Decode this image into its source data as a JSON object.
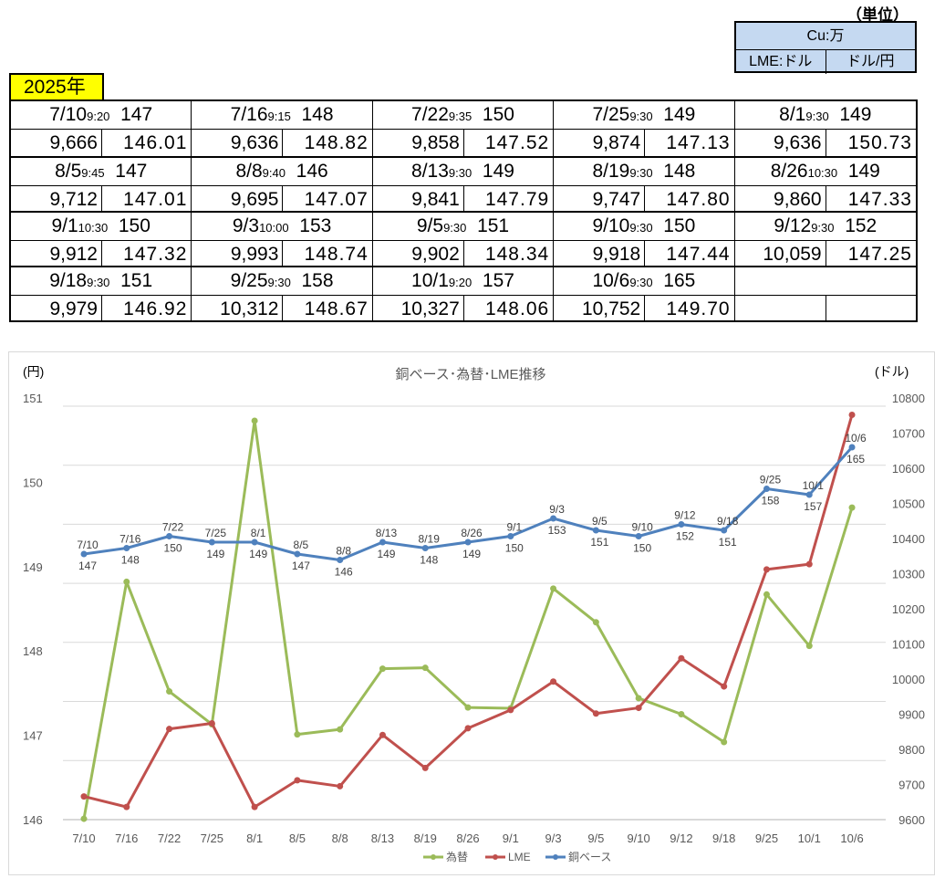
{
  "unit": {
    "label": "（単位）",
    "cu": "Cu:万",
    "lme": "LME:ドル",
    "fx": "ドル/円",
    "bg_color": "#c5d9f1"
  },
  "year": {
    "label": "2025年",
    "bg_color": "#ffff00"
  },
  "entries": [
    {
      "date": "7/10",
      "time": "9:20",
      "base": "147",
      "lme": "9,666",
      "fx": "146.01"
    },
    {
      "date": "7/16",
      "time": "9:15",
      "base": "148",
      "lme": "9,636",
      "fx": "148.82"
    },
    {
      "date": "7/22",
      "time": "9:35",
      "base": "150",
      "lme": "9,858",
      "fx": "147.52"
    },
    {
      "date": "7/25",
      "time": "9:30",
      "base": "149",
      "lme": "9,874",
      "fx": "147.13"
    },
    {
      "date": "8/1",
      "time": "9:30",
      "base": "149",
      "lme": "9,636",
      "fx": "150.73"
    },
    {
      "date": "8/5",
      "time": "9:45",
      "base": "147",
      "lme": "9,712",
      "fx": "147.01"
    },
    {
      "date": "8/8",
      "time": "9:40",
      "base": "146",
      "lme": "9,695",
      "fx": "147.07"
    },
    {
      "date": "8/13",
      "time": "9:30",
      "base": "149",
      "lme": "9,841",
      "fx": "147.79"
    },
    {
      "date": "8/19",
      "time": "9:30",
      "base": "148",
      "lme": "9,747",
      "fx": "147.80"
    },
    {
      "date": "8/26",
      "time": "10:30",
      "base": "149",
      "lme": "9,860",
      "fx": "147.33"
    },
    {
      "date": "9/1",
      "time": "10:30",
      "base": "150",
      "lme": "9,912",
      "fx": "147.32"
    },
    {
      "date": "9/3",
      "time": "10:00",
      "base": "153",
      "lme": "9,993",
      "fx": "148.74"
    },
    {
      "date": "9/5",
      "time": "9:30",
      "base": "151",
      "lme": "9,902",
      "fx": "148.34"
    },
    {
      "date": "9/10",
      "time": "9:30",
      "base": "150",
      "lme": "9,918",
      "fx": "147.44"
    },
    {
      "date": "9/12",
      "time": "9:30",
      "base": "152",
      "lme": "10,059",
      "fx": "147.25"
    },
    {
      "date": "9/18",
      "time": "9:30",
      "base": "151",
      "lme": "9,979",
      "fx": "146.92"
    },
    {
      "date": "9/25",
      "time": "9:30",
      "base": "158",
      "lme": "10,312",
      "fx": "148.67"
    },
    {
      "date": "10/1",
      "time": "9:20",
      "base": "157",
      "lme": "10,327",
      "fx": "148.06"
    },
    {
      "date": "10/6",
      "time": "9:30",
      "base": "165",
      "lme": "10,752",
      "fx": "149.70"
    }
  ],
  "chart_data": {
    "type": "line",
    "title": "銅ベース･為替･LME推移",
    "y_left_label": "(円)",
    "y_right_label": "(ドル)",
    "categories": [
      "7/10",
      "7/16",
      "7/22",
      "7/25",
      "8/1",
      "8/5",
      "8/8",
      "8/13",
      "8/19",
      "8/26",
      "9/1",
      "9/3",
      "9/5",
      "9/10",
      "9/12",
      "9/18",
      "9/25",
      "10/1",
      "10/6"
    ],
    "y_left": {
      "min": 146,
      "max": 151,
      "ticks": [
        "146",
        "147",
        "148",
        "149",
        "150",
        "151"
      ]
    },
    "y_right": {
      "min": 9600,
      "max": 10800,
      "ticks": [
        "9600",
        "9700",
        "9800",
        "9900",
        "10000",
        "10100",
        "10200",
        "10300",
        "10400",
        "10500",
        "10600",
        "10700",
        "10800"
      ]
    },
    "grid": true,
    "legend_position": "bottom",
    "series": [
      {
        "name": "為替",
        "axis": "left",
        "color": "#9bbb59",
        "values": [
          146.01,
          148.82,
          147.52,
          147.13,
          150.73,
          147.01,
          147.07,
          147.79,
          147.8,
          147.33,
          147.32,
          148.74,
          148.34,
          147.44,
          147.25,
          146.92,
          148.67,
          148.06,
          149.7
        ]
      },
      {
        "name": "LME",
        "axis": "right",
        "color": "#c0504d",
        "values": [
          9666,
          9636,
          9858,
          9874,
          9636,
          9712,
          9695,
          9841,
          9747,
          9860,
          9912,
          9993,
          9902,
          9918,
          10059,
          9979,
          10312,
          10327,
          10752
        ]
      },
      {
        "name": "銅ベース",
        "axis": "hidden",
        "color": "#4f81bd",
        "data_labels": true,
        "values": [
          147,
          148,
          150,
          149,
          149,
          147,
          146,
          149,
          148,
          149,
          150,
          153,
          151,
          150,
          152,
          151,
          158,
          157,
          165
        ]
      }
    ]
  }
}
